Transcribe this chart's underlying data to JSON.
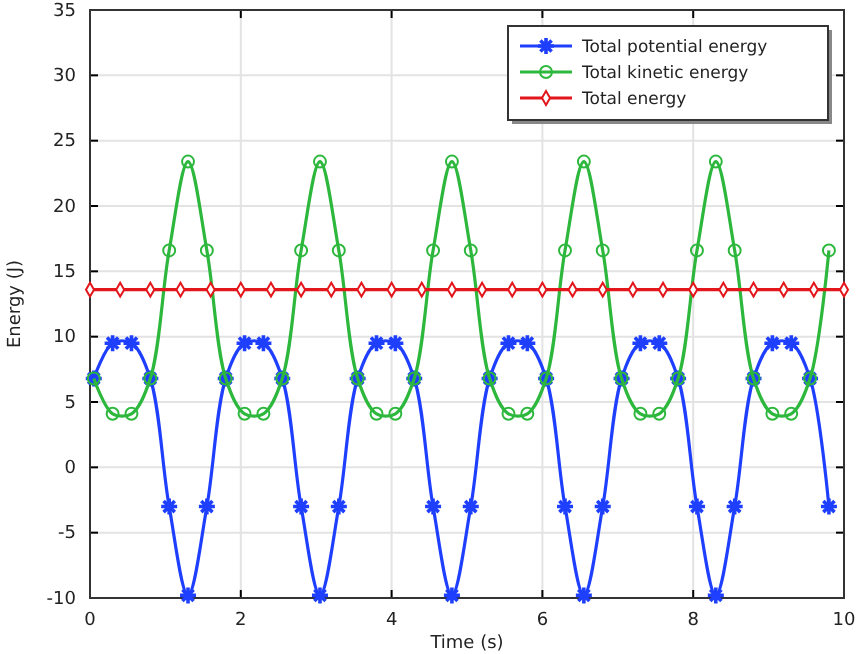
{
  "chart_data": {
    "type": "line",
    "xlabel": "Time (s)",
    "ylabel": "Energy (J)",
    "xlim": [
      0,
      10
    ],
    "xticks": [
      0,
      2,
      4,
      6,
      8,
      10
    ],
    "ylim": [
      -10,
      35
    ],
    "yticks": [
      -10,
      -5,
      0,
      5,
      10,
      15,
      20,
      25,
      30,
      35
    ],
    "grid": true,
    "legend": "top right",
    "x": [
      0.05,
      0.3,
      0.55,
      0.8,
      1.05,
      1.3,
      1.55,
      1.8,
      2.05,
      2.3,
      2.55,
      2.8,
      3.05,
      3.3,
      3.55,
      3.8,
      4.05,
      4.3,
      4.55,
      4.8,
      5.05,
      5.3,
      5.55,
      5.8,
      6.05,
      6.3,
      6.55,
      6.8,
      7.05,
      7.3,
      7.55,
      7.8,
      8.05,
      8.3,
      8.55,
      8.8,
      9.05,
      9.3,
      9.55,
      9.8
    ],
    "series": [
      {
        "name": "Total potential energy",
        "color": "#1f3fff",
        "marker": "cross",
        "values": [
          6.8,
          9.5,
          9.5,
          6.8,
          -3.0,
          -9.8,
          -3.0,
          6.8,
          9.5,
          9.5,
          6.8,
          -3.0,
          -9.8,
          -3.0,
          6.8,
          9.5,
          9.5,
          6.8,
          -3.0,
          -9.8,
          -3.0,
          6.8,
          9.5,
          9.5,
          6.8,
          -3.0,
          -9.8,
          -3.0,
          6.8,
          9.5,
          9.5,
          6.8,
          -3.0,
          -9.8,
          -3.0,
          6.8,
          9.5,
          9.5,
          6.8,
          -3.0
        ]
      },
      {
        "name": "Total kinetic energy",
        "color": "#2db83d",
        "marker": "circle",
        "values": [
          6.8,
          4.1,
          4.1,
          6.8,
          16.6,
          23.4,
          16.6,
          6.8,
          4.1,
          4.1,
          6.8,
          16.6,
          23.4,
          16.6,
          6.8,
          4.1,
          4.1,
          6.8,
          16.6,
          23.4,
          16.6,
          6.8,
          4.1,
          4.1,
          6.8,
          16.6,
          23.4,
          16.6,
          6.8,
          4.1,
          4.1,
          6.8,
          16.6,
          23.4,
          16.6,
          6.8,
          4.1,
          4.1,
          6.8,
          16.6
        ]
      },
      {
        "name": "Total energy",
        "color": "#e3161b",
        "marker": "diamond",
        "x": [
          0,
          0.4,
          0.8,
          1.2,
          1.6,
          2,
          2.4,
          2.8,
          3.2,
          3.6,
          4,
          4.4,
          4.8,
          5.2,
          5.6,
          6,
          6.4,
          6.8,
          7.2,
          7.6,
          8,
          8.4,
          8.8,
          9.2,
          9.6,
          10
        ],
        "values": [
          13.6,
          13.6,
          13.6,
          13.6,
          13.6,
          13.6,
          13.6,
          13.6,
          13.6,
          13.6,
          13.6,
          13.6,
          13.6,
          13.6,
          13.6,
          13.6,
          13.6,
          13.6,
          13.6,
          13.6,
          13.6,
          13.6,
          13.6,
          13.6,
          13.6,
          13.6
        ]
      }
    ]
  }
}
